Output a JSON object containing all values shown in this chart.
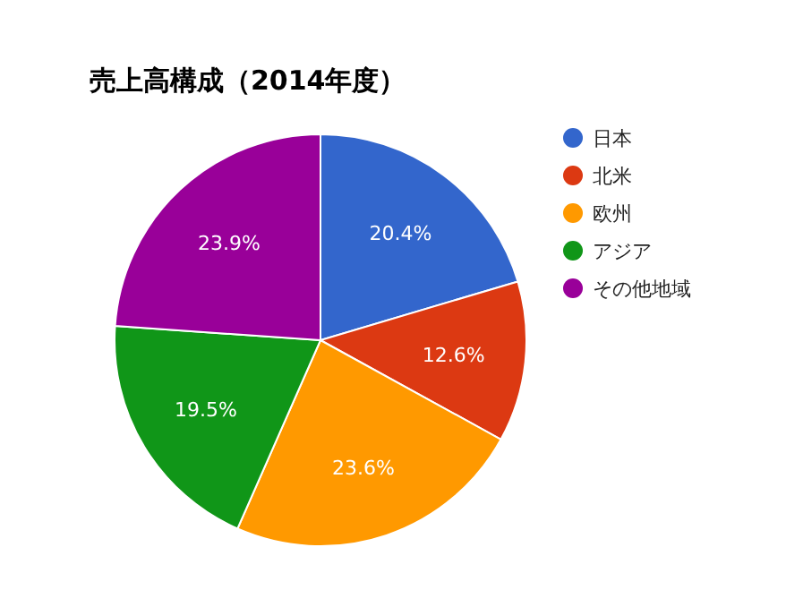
{
  "chart_data": {
    "type": "pie",
    "title": "売上高構成（2014年度）",
    "categories": [
      "日本",
      "北米",
      "欧州",
      "アジア",
      "その他地域"
    ],
    "values": [
      20.4,
      12.6,
      23.6,
      19.5,
      23.9
    ],
    "colors": [
      "#3366cc",
      "#dc3912",
      "#ff9900",
      "#109618",
      "#990099"
    ],
    "value_labels": [
      "20.4%",
      "12.6%",
      "23.6%",
      "19.5%",
      "23.9%"
    ],
    "legend": "top right"
  }
}
